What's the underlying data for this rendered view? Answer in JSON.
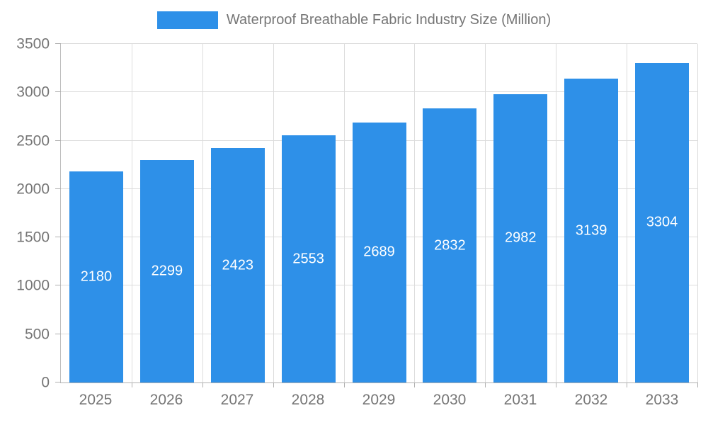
{
  "legend": {
    "title": "Waterproof Breathable Fabric Industry Size (Million)",
    "swatch_color": "#2E90E8"
  },
  "chart_data": {
    "type": "bar",
    "title": "Waterproof Breathable Fabric Industry Size (Million)",
    "categories": [
      "2025",
      "2026",
      "2027",
      "2028",
      "2029",
      "2030",
      "2031",
      "2032",
      "2033"
    ],
    "values": [
      2180,
      2299,
      2423,
      2553,
      2689,
      2832,
      2982,
      3139,
      3304
    ],
    "xlabel": "",
    "ylabel": "",
    "ylim": [
      0,
      3500
    ],
    "ytick_step": 500,
    "grid": true,
    "legend_position": "top",
    "bar_color": "#2E90E8",
    "label_color": "#ffffff",
    "axis_label_color": "#757575"
  }
}
